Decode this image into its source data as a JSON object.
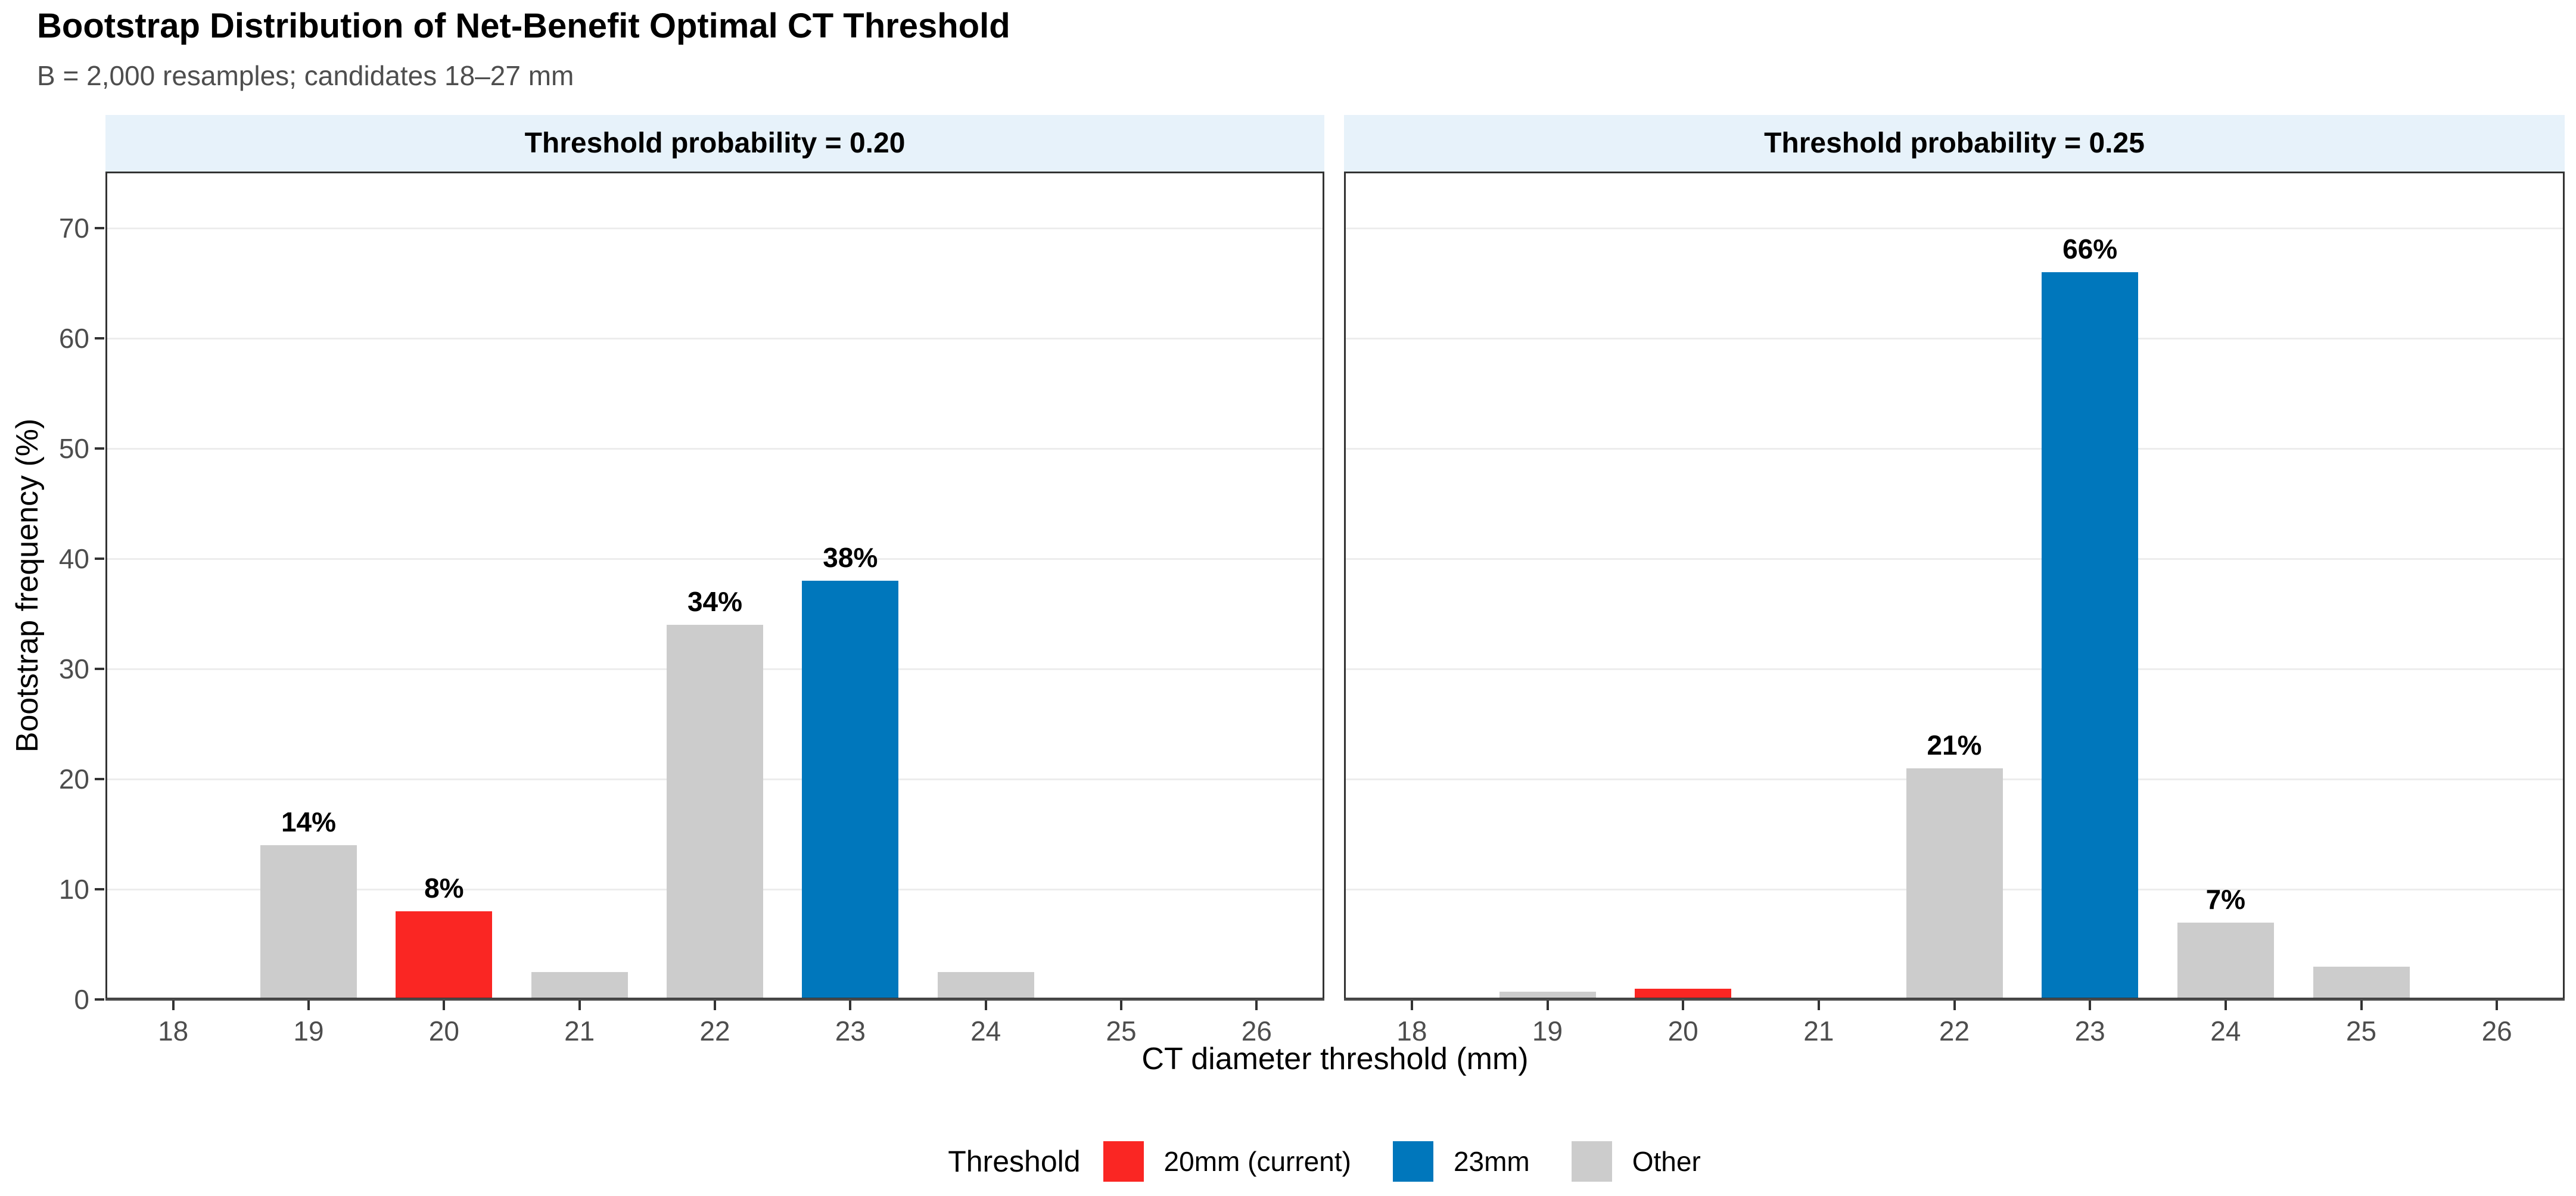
{
  "chart_data": {
    "type": "bar",
    "title": "Bootstrap Distribution of Net-Benefit Optimal CT Threshold",
    "subtitle": "B = 2,000 resamples; candidates 18–27 mm",
    "xlabel": "CT diameter threshold (mm)",
    "ylabel": "Bootstrap frequency (%)",
    "ylim": [
      0,
      75
    ],
    "y_ticks": [
      0,
      10,
      20,
      30,
      40,
      50,
      60,
      70
    ],
    "categories": [
      "18",
      "19",
      "20",
      "21",
      "22",
      "23",
      "24",
      "25",
      "26"
    ],
    "facets": [
      {
        "label": "Threshold probability = 0.20",
        "values": [
          0,
          14,
          8,
          2.5,
          34,
          38,
          2.5,
          0,
          0
        ],
        "bar_labels": [
          "",
          "14%",
          "8%",
          "",
          "34%",
          "38%",
          "",
          "",
          ""
        ]
      },
      {
        "label": "Threshold probability = 0.25",
        "values": [
          0,
          0.7,
          1,
          0,
          21,
          66,
          7,
          3,
          0
        ],
        "bar_labels": [
          "",
          "",
          "",
          "",
          "21%",
          "66%",
          "7%",
          "",
          ""
        ]
      }
    ],
    "color_rule": {
      "20": "current",
      "23": "optimal",
      "default": "other"
    },
    "grid": "horizontal-major",
    "legend_position": "bottom"
  },
  "legend": {
    "title": "Threshold",
    "items": [
      {
        "label": "20mm (current)",
        "color_key": "current"
      },
      {
        "label": "23mm",
        "color_key": "optimal"
      },
      {
        "label": "Other",
        "color_key": "other"
      }
    ]
  },
  "colors": {
    "current": "#fa2623",
    "optimal": "#0077bc",
    "other": "#cccccc",
    "strip_bg": "#e7f2fa",
    "grid": "#ededed",
    "axis_text": "#4d4d4d",
    "panel_border": "#333333",
    "axis_line": "#4a4a4a",
    "tick_mark": "#333333"
  }
}
